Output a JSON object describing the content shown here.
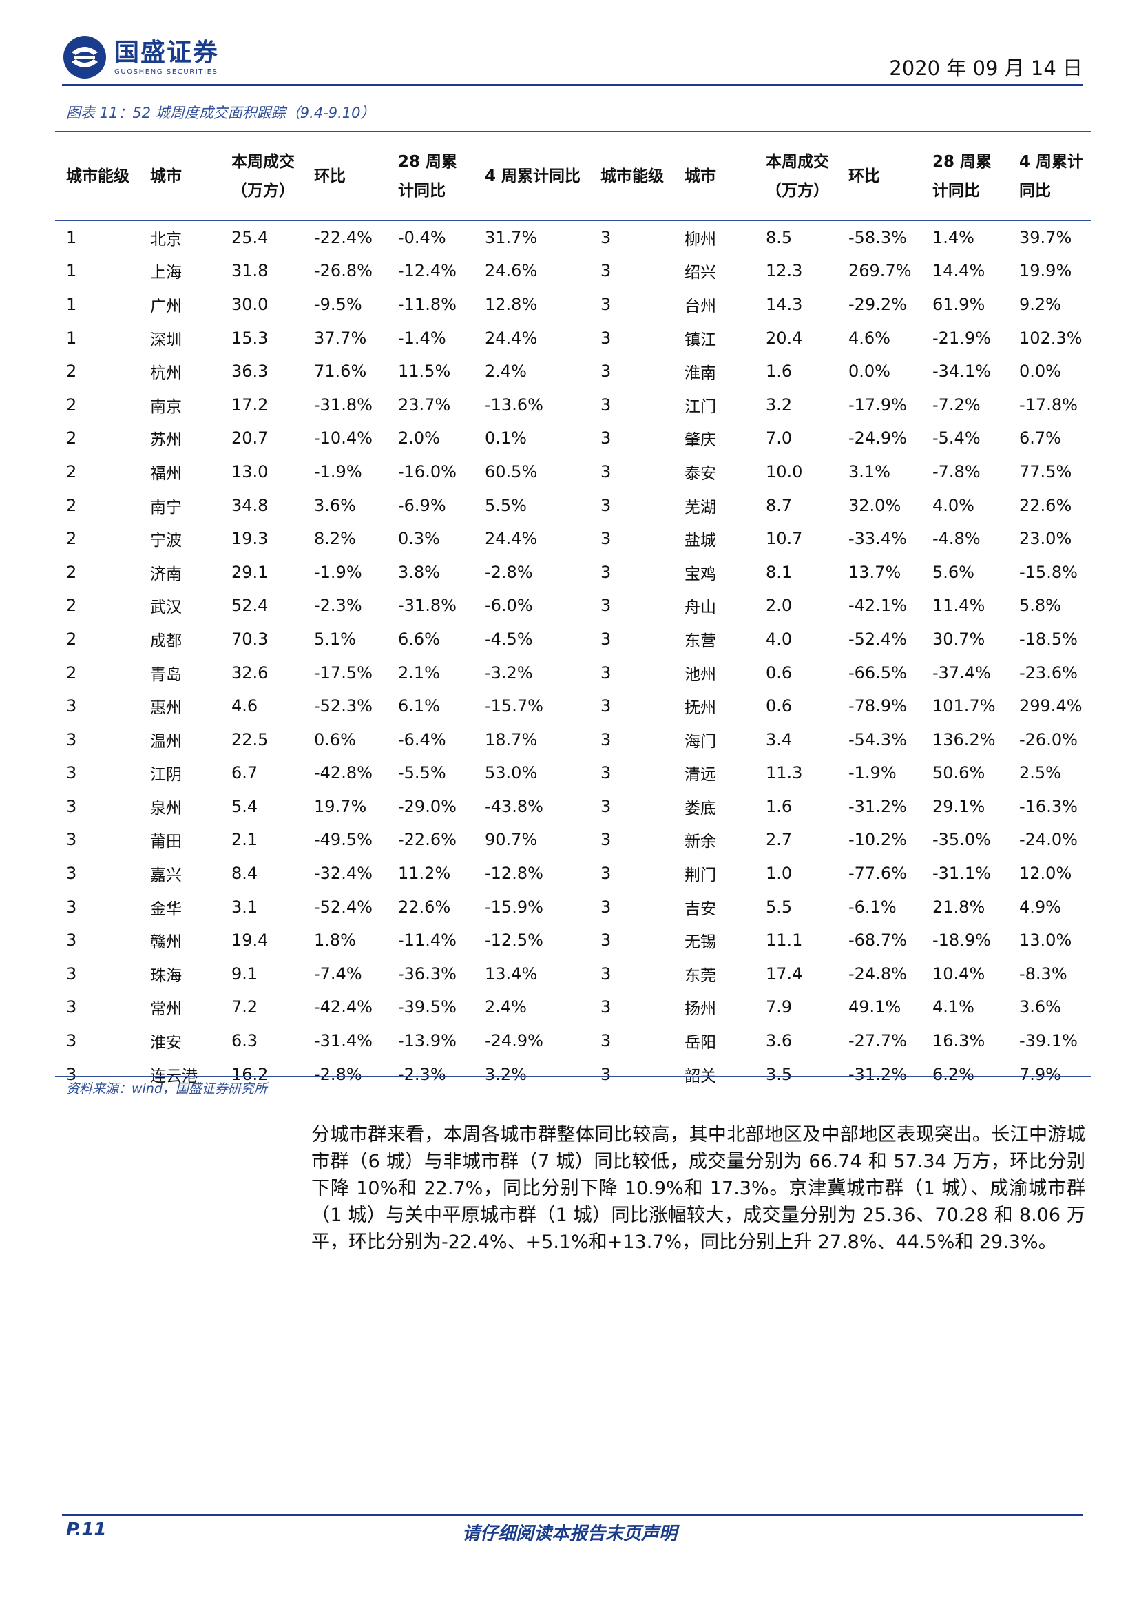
{
  "header": {
    "logo_cn": "国盛证券",
    "logo_en": "GUOSHENG SECURITIES",
    "date": "2020 年 09 月 14 日"
  },
  "table": {
    "caption": "图表 11：52 城周度成交面积跟踪（9.4-9.10）",
    "headers": [
      "城市能级",
      "城市",
      "本周成交（万方）",
      "环比",
      "28 周累计同比",
      "4 周累计同比",
      "城市能级",
      "城市",
      "本周成交（万方）",
      "环比",
      "28 周累计同比",
      "4 周累计同比"
    ],
    "rows": [
      [
        "1",
        "北京",
        "25.4",
        "-22.4%",
        "-0.4%",
        "31.7%",
        "3",
        "柳州",
        "8.5",
        "-58.3%",
        "1.4%",
        "39.7%"
      ],
      [
        "1",
        "上海",
        "31.8",
        "-26.8%",
        "-12.4%",
        "24.6%",
        "3",
        "绍兴",
        "12.3",
        "269.7%",
        "14.4%",
        "19.9%"
      ],
      [
        "1",
        "广州",
        "30.0",
        "-9.5%",
        "-11.8%",
        "12.8%",
        "3",
        "台州",
        "14.3",
        "-29.2%",
        "61.9%",
        "9.2%"
      ],
      [
        "1",
        "深圳",
        "15.3",
        "37.7%",
        "-1.4%",
        "24.4%",
        "3",
        "镇江",
        "20.4",
        "4.6%",
        "-21.9%",
        "102.3%"
      ],
      [
        "2",
        "杭州",
        "36.3",
        "71.6%",
        "11.5%",
        "2.4%",
        "3",
        "淮南",
        "1.6",
        "0.0%",
        "-34.1%",
        "0.0%"
      ],
      [
        "2",
        "南京",
        "17.2",
        "-31.8%",
        "23.7%",
        "-13.6%",
        "3",
        "江门",
        "3.2",
        "-17.9%",
        "-7.2%",
        "-17.8%"
      ],
      [
        "2",
        "苏州",
        "20.7",
        "-10.4%",
        "2.0%",
        "0.1%",
        "3",
        "肇庆",
        "7.0",
        "-24.9%",
        "-5.4%",
        "6.7%"
      ],
      [
        "2",
        "福州",
        "13.0",
        "-1.9%",
        "-16.0%",
        "60.5%",
        "3",
        "泰安",
        "10.0",
        "3.1%",
        "-7.8%",
        "77.5%"
      ],
      [
        "2",
        "南宁",
        "34.8",
        "3.6%",
        "-6.9%",
        "5.5%",
        "3",
        "芜湖",
        "8.7",
        "32.0%",
        "4.0%",
        "22.6%"
      ],
      [
        "2",
        "宁波",
        "19.3",
        "8.2%",
        "0.3%",
        "24.4%",
        "3",
        "盐城",
        "10.7",
        "-33.4%",
        "-4.8%",
        "23.0%"
      ],
      [
        "2",
        "济南",
        "29.1",
        "-1.9%",
        "3.8%",
        "-2.8%",
        "3",
        "宝鸡",
        "8.1",
        "13.7%",
        "5.6%",
        "-15.8%"
      ],
      [
        "2",
        "武汉",
        "52.4",
        "-2.3%",
        "-31.8%",
        "-6.0%",
        "3",
        "舟山",
        "2.0",
        "-42.1%",
        "11.4%",
        "5.8%"
      ],
      [
        "2",
        "成都",
        "70.3",
        "5.1%",
        "6.6%",
        "-4.5%",
        "3",
        "东营",
        "4.0",
        "-52.4%",
        "30.7%",
        "-18.5%"
      ],
      [
        "2",
        "青岛",
        "32.6",
        "-17.5%",
        "2.1%",
        "-3.2%",
        "3",
        "池州",
        "0.6",
        "-66.5%",
        "-37.4%",
        "-23.6%"
      ],
      [
        "3",
        "惠州",
        "4.6",
        "-52.3%",
        "6.1%",
        "-15.7%",
        "3",
        "抚州",
        "0.6",
        "-78.9%",
        "101.7%",
        "299.4%"
      ],
      [
        "3",
        "温州",
        "22.5",
        "0.6%",
        "-6.4%",
        "18.7%",
        "3",
        "海门",
        "3.4",
        "-54.3%",
        "136.2%",
        "-26.0%"
      ],
      [
        "3",
        "江阴",
        "6.7",
        "-42.8%",
        "-5.5%",
        "53.0%",
        "3",
        "清远",
        "11.3",
        "-1.9%",
        "50.6%",
        "2.5%"
      ],
      [
        "3",
        "泉州",
        "5.4",
        "19.7%",
        "-29.0%",
        "-43.8%",
        "3",
        "娄底",
        "1.6",
        "-31.2%",
        "29.1%",
        "-16.3%"
      ],
      [
        "3",
        "莆田",
        "2.1",
        "-49.5%",
        "-22.6%",
        "90.7%",
        "3",
        "新余",
        "2.7",
        "-10.2%",
        "-35.0%",
        "-24.0%"
      ],
      [
        "3",
        "嘉兴",
        "8.4",
        "-32.4%",
        "11.2%",
        "-12.8%",
        "3",
        "荆门",
        "1.0",
        "-77.6%",
        "-31.1%",
        "12.0%"
      ],
      [
        "3",
        "金华",
        "3.1",
        "-52.4%",
        "22.6%",
        "-15.9%",
        "3",
        "吉安",
        "5.5",
        "-6.1%",
        "21.8%",
        "4.9%"
      ],
      [
        "3",
        "赣州",
        "19.4",
        "1.8%",
        "-11.4%",
        "-12.5%",
        "3",
        "无锡",
        "11.1",
        "-68.7%",
        "-18.9%",
        "13.0%"
      ],
      [
        "3",
        "珠海",
        "9.1",
        "-7.4%",
        "-36.3%",
        "13.4%",
        "3",
        "东莞",
        "17.4",
        "-24.8%",
        "10.4%",
        "-8.3%"
      ],
      [
        "3",
        "常州",
        "7.2",
        "-42.4%",
        "-39.5%",
        "2.4%",
        "3",
        "扬州",
        "7.9",
        "49.1%",
        "4.1%",
        "3.6%"
      ],
      [
        "3",
        "淮安",
        "6.3",
        "-31.4%",
        "-13.9%",
        "-24.9%",
        "3",
        "岳阳",
        "3.6",
        "-27.7%",
        "16.3%",
        "-39.1%"
      ],
      [
        "3",
        "连云港",
        "16.2",
        "-2.8%",
        "-2.3%",
        "3.2%",
        "3",
        "韶关",
        "3.5",
        "-31.2%",
        "6.2%",
        "7.9%"
      ]
    ],
    "source": "资料来源：wind，国盛证券研究所"
  },
  "body": {
    "paragraph": "分城市群来看，本周各城市群整体同比较高，其中北部地区及中部地区表现突出。长江中游城市群（6 城）与非城市群（7 城）同比较低，成交量分别为 66.74 和 57.34 万方，环比分别下降 10%和 22.7%，同比分别下降 10.9%和 17.3%。京津冀城市群（1 城）、成渝城市群（1 城）与关中平原城市群（1 城）同比涨幅较大，成交量分别为 25.36、70.28 和 8.06 万平，环比分别为-22.4%、+5.1%和+13.7%，同比分别上升 27.8%、44.5%和 29.3%。"
  },
  "footer": {
    "page": "P.11",
    "note": "请仔细阅读本报告末页声明"
  },
  "colors": {
    "brand": "#1a3c8c",
    "accent": "#2f4f9a"
  }
}
